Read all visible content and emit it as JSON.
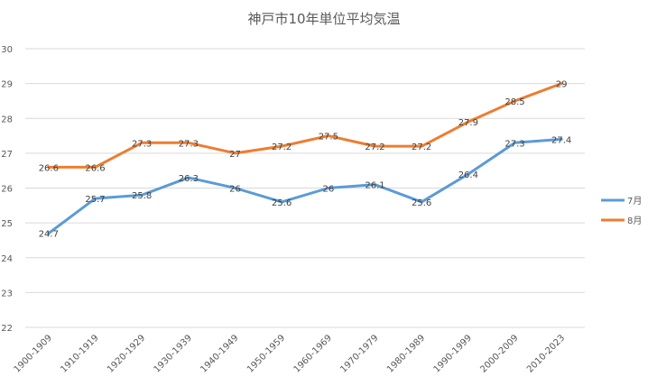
{
  "chart_data": {
    "type": "line",
    "title": "神戸市10年単位平均気温",
    "categories": [
      "1900-1909",
      "1910-1919",
      "1920-1929",
      "1930-1939",
      "1940-1949",
      "1950-1959",
      "1960-1969",
      "1970-1979",
      "1980-1989",
      "1990-1999",
      "2000-2009",
      "2010-2023"
    ],
    "series": [
      {
        "name": "7月",
        "color": "#5b9bd5",
        "values": [
          24.7,
          25.7,
          25.8,
          26.3,
          26,
          25.6,
          26,
          26.1,
          25.6,
          26.4,
          27.3,
          27.4
        ]
      },
      {
        "name": "8月",
        "color": "#ed7d31",
        "values": [
          26.6,
          26.6,
          27.3,
          27.3,
          27,
          27.2,
          27.5,
          27.2,
          27.2,
          27.9,
          28.5,
          29
        ]
      }
    ],
    "ylim": [
      22,
      30
    ],
    "yticks": [
      22,
      23,
      24,
      25,
      26,
      27,
      28,
      29,
      30
    ],
    "grid": true,
    "legend_position": "right"
  }
}
